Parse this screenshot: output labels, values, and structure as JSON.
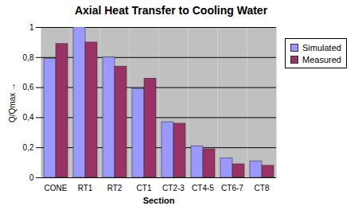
{
  "chart_data": {
    "type": "bar",
    "title": "Axial Heat Transfer to Cooling Water",
    "x_label": "Section",
    "y_label": "Q/Qmax",
    "categories": [
      "CONE",
      "RT1",
      "RT2",
      "CT1",
      "CT2-3",
      "CT4-5",
      "CT6-7",
      "CT8"
    ],
    "series": [
      {
        "name": "Simulated",
        "color": "#9999ff",
        "values": [
          0.79,
          1.0,
          0.8,
          0.59,
          0.37,
          0.21,
          0.13,
          0.11
        ]
      },
      {
        "name": "Measured",
        "color": "#993366",
        "values": [
          0.89,
          0.9,
          0.74,
          0.66,
          0.36,
          0.19,
          0.09,
          0.08
        ]
      }
    ],
    "ylim": [
      0,
      1
    ],
    "yticks": [
      0,
      {
        "value": 0.2,
        "label": "0,2"
      },
      {
        "value": 0.4,
        "label": "0,4"
      },
      {
        "value": 0.6,
        "label": "0,6"
      },
      {
        "value": 0.8,
        "label": "0,8"
      },
      1
    ],
    "grid": true,
    "legend": "right"
  }
}
